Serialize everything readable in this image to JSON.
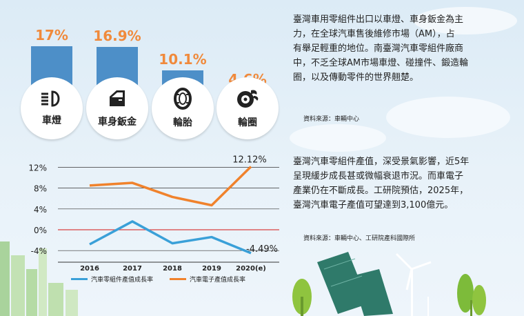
{
  "bars": [
    {
      "label": "車燈",
      "value_text": "17%",
      "value": 17.0,
      "icon": "headlight-icon"
    },
    {
      "label": "車身鈑金",
      "value_text": "16.9%",
      "value": 16.9,
      "icon": "car-door-icon"
    },
    {
      "label": "輪胎",
      "value_text": "10.1%",
      "value": 10.1,
      "icon": "tire-icon"
    },
    {
      "label": "輪圈",
      "value_text": "4.6%",
      "value": 4.6,
      "icon": "wheel-rim-icon"
    }
  ],
  "text1": {
    "lines": [
      "臺灣車用零組件出口以車燈、車身鈑金為主",
      "力，在全球汽車售後維修市場（AM），占",
      "有舉足輕重的地位。南臺灣汽車零組件廠商",
      "中，不乏全球AM市場車燈、碰撞件、鍛造輪",
      "圈，以及傳動零件的世界翹楚。"
    ],
    "source": "資料來源：車輛中心"
  },
  "text2": {
    "lines": [
      "臺灣汽車零組件產值，深受景氣影響，近5年",
      "呈現緩步成長甚或微幅衰退市況。而車電子",
      "產業仍在不斷成長。工研院預估，2025年，",
      "臺灣汽車電子產值可望達到3,100億元。"
    ],
    "source": "資料來源：車輛中心、工研院產科國際所"
  },
  "chart_data": {
    "type": "line",
    "x": [
      "2016",
      "2017",
      "2018",
      "2019",
      "2020(e)"
    ],
    "yticks": [
      "12%",
      "8%",
      "4%",
      "0%",
      "-4%"
    ],
    "ytick_values": [
      12,
      8,
      4,
      0,
      -4
    ],
    "ylim": [
      -6,
      12.5
    ],
    "series": [
      {
        "name": "汽車零組件產值成長率",
        "color": "#3aa0d8",
        "values": [
          -2.8,
          1.6,
          -2.6,
          -1.4,
          -4.49
        ]
      },
      {
        "name": "汽車電子產值成長率",
        "color": "#f0822c",
        "values": [
          8.5,
          9.0,
          6.3,
          4.7,
          12.12
        ]
      }
    ],
    "annotations": [
      {
        "text": "12.12%"
      },
      {
        "text": "-4.49%"
      }
    ]
  },
  "colors": {
    "bar": "#4d8fc8",
    "accent": "#f08a3c",
    "zero_line": "#d94040"
  }
}
